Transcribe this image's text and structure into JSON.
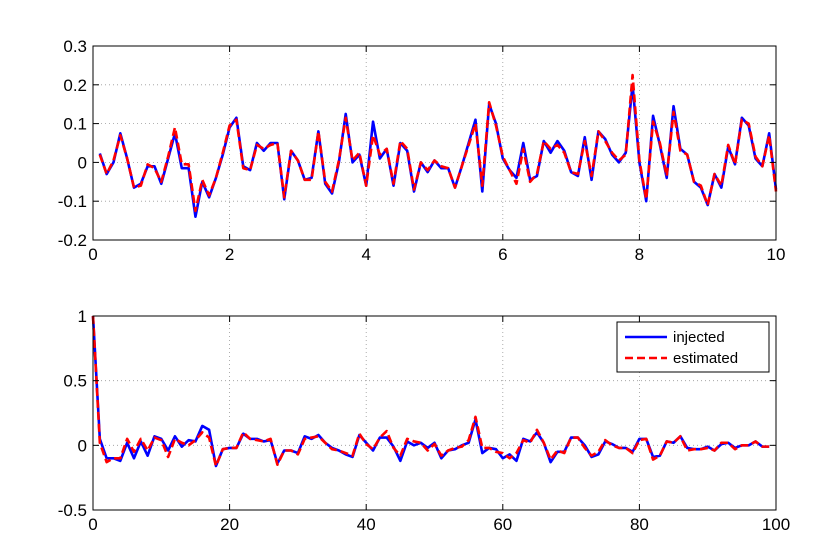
{
  "chart_data": [
    {
      "type": "line",
      "title": "",
      "xlabel": "",
      "ylabel": "",
      "xlim": [
        0,
        10
      ],
      "ylim": [
        -0.2,
        0.3
      ],
      "xticks": [
        0,
        2,
        4,
        6,
        8,
        10
      ],
      "yticks": [
        -0.2,
        -0.1,
        0,
        0.1,
        0.2,
        0.3
      ],
      "xtick_labels": [
        "0",
        "2",
        "4",
        "6",
        "8",
        "10"
      ],
      "ytick_labels": [
        "-0.2",
        "-0.1",
        "0",
        "0.1",
        "0.2",
        "0.3"
      ],
      "grid": true,
      "legend": null,
      "x_start": 0.1,
      "x_step": 0.1,
      "series": [
        {
          "color": "#0000ff",
          "style": "solid",
          "values": [
            0.023,
            -0.03,
            0.0,
            0.075,
            0.01,
            -0.065,
            -0.055,
            -0.01,
            -0.01,
            -0.055,
            0.01,
            0.075,
            -0.015,
            -0.015,
            -0.14,
            -0.05,
            -0.09,
            -0.04,
            0.02,
            0.09,
            0.115,
            -0.01,
            -0.02,
            0.05,
            0.03,
            0.05,
            0.05,
            -0.095,
            0.03,
            0.005,
            -0.045,
            -0.04,
            0.08,
            -0.055,
            -0.08,
            0.0,
            0.125,
            0.0,
            0.02,
            -0.06,
            0.105,
            0.01,
            0.035,
            -0.06,
            0.05,
            0.03,
            -0.075,
            0.0,
            -0.025,
            0.005,
            -0.015,
            -0.015,
            -0.065,
            -0.01,
            0.05,
            0.11,
            -0.075,
            0.15,
            0.1,
            0.01,
            -0.02,
            -0.04,
            0.05,
            -0.045,
            -0.035,
            0.055,
            0.025,
            0.055,
            0.03,
            -0.025,
            -0.035,
            0.065,
            -0.045,
            0.08,
            0.06,
            0.02,
            0.0,
            0.025,
            0.2,
            0.0,
            -0.1,
            0.12,
            0.045,
            -0.04,
            0.145,
            0.035,
            0.02,
            -0.05,
            -0.065,
            -0.11,
            -0.03,
            -0.065,
            0.04,
            -0.005,
            0.115,
            0.095,
            0.01,
            -0.01,
            0.075,
            -0.07
          ]
        },
        {
          "color": "#ff0000",
          "style": "dashed",
          "values": [
            0.02,
            -0.03,
            0.005,
            0.07,
            0.01,
            -0.065,
            -0.06,
            -0.005,
            -0.015,
            -0.05,
            0.015,
            0.09,
            -0.005,
            -0.005,
            -0.125,
            -0.045,
            -0.085,
            -0.04,
            0.025,
            0.095,
            0.11,
            -0.015,
            -0.02,
            0.045,
            0.035,
            0.045,
            0.05,
            -0.09,
            0.03,
            0.005,
            -0.045,
            -0.045,
            0.08,
            -0.05,
            -0.075,
            0.005,
            0.115,
            0.005,
            0.025,
            -0.06,
            0.07,
            0.02,
            0.035,
            -0.055,
            0.055,
            0.035,
            -0.07,
            0.0,
            -0.02,
            0.005,
            -0.01,
            -0.015,
            -0.065,
            -0.01,
            0.045,
            0.1,
            -0.06,
            0.155,
            0.095,
            0.015,
            -0.02,
            -0.055,
            0.035,
            -0.05,
            -0.03,
            0.055,
            0.035,
            0.045,
            0.025,
            -0.025,
            -0.03,
            0.055,
            -0.035,
            0.08,
            0.055,
            0.025,
            0.005,
            0.02,
            0.225,
            0.005,
            -0.095,
            0.105,
            0.05,
            -0.035,
            0.13,
            0.03,
            0.02,
            -0.05,
            -0.06,
            -0.11,
            -0.03,
            -0.06,
            0.045,
            -0.005,
            0.11,
            0.1,
            0.015,
            -0.01,
            0.07,
            -0.075
          ]
        }
      ]
    },
    {
      "type": "line",
      "title": "",
      "xlabel": "",
      "ylabel": "",
      "xlim": [
        0,
        100
      ],
      "ylim": [
        -0.5,
        1
      ],
      "xticks": [
        0,
        20,
        40,
        60,
        80,
        100
      ],
      "yticks": [
        -0.5,
        0,
        0.5,
        1
      ],
      "xtick_labels": [
        "0",
        "20",
        "40",
        "60",
        "80",
        "100"
      ],
      "ytick_labels": [
        "-0.5",
        "0",
        "0.5",
        "1"
      ],
      "grid": true,
      "legend": "top-right",
      "x_start": 0,
      "x_step": 1,
      "series": [
        {
          "name": "injected",
          "color": "#0000ff",
          "style": "solid",
          "values": [
            1.0,
            0.05,
            -0.1,
            -0.1,
            -0.12,
            0.02,
            -0.1,
            0.03,
            -0.08,
            0.07,
            0.05,
            -0.04,
            0.07,
            -0.01,
            0.04,
            0.03,
            0.15,
            0.12,
            -0.16,
            -0.03,
            -0.02,
            -0.02,
            0.09,
            0.05,
            0.05,
            0.03,
            0.04,
            -0.14,
            -0.04,
            -0.04,
            -0.06,
            0.07,
            0.05,
            0.08,
            0.02,
            -0.02,
            -0.04,
            -0.07,
            -0.09,
            0.08,
            0.02,
            -0.04,
            0.06,
            0.06,
            -0.01,
            -0.12,
            0.03,
            0.0,
            0.02,
            -0.02,
            0.02,
            -0.1,
            -0.04,
            -0.03,
            0.0,
            0.02,
            0.2,
            -0.06,
            -0.02,
            -0.03,
            -0.1,
            -0.07,
            -0.12,
            0.05,
            0.03,
            0.1,
            0.02,
            -0.13,
            -0.05,
            -0.05,
            0.06,
            0.06,
            0.0,
            -0.09,
            -0.07,
            0.03,
            0.01,
            -0.02,
            -0.02,
            -0.05,
            0.05,
            0.05,
            -0.09,
            -0.08,
            0.03,
            0.02,
            0.07,
            -0.02,
            -0.03,
            -0.03,
            -0.01,
            -0.04,
            0.01,
            0.02,
            -0.02,
            0.0,
            0.0,
            0.03,
            -0.01,
            -0.01
          ]
        },
        {
          "name": "estimated",
          "color": "#ff0000",
          "style": "dashed",
          "values": [
            1.0,
            0.02,
            -0.13,
            -0.1,
            -0.1,
            0.05,
            -0.05,
            0.05,
            -0.04,
            0.06,
            0.04,
            -0.09,
            0.05,
            0.02,
            0.0,
            0.04,
            0.1,
            0.06,
            -0.16,
            -0.03,
            -0.02,
            -0.02,
            0.1,
            0.05,
            0.04,
            0.03,
            0.05,
            -0.15,
            -0.04,
            -0.04,
            -0.07,
            0.05,
            0.06,
            0.07,
            0.02,
            -0.03,
            -0.04,
            -0.06,
            -0.08,
            0.09,
            0.01,
            -0.03,
            0.06,
            0.11,
            -0.02,
            -0.08,
            0.05,
            0.03,
            0.02,
            -0.04,
            0.01,
            -0.08,
            -0.04,
            -0.02,
            -0.01,
            0.04,
            0.22,
            -0.02,
            -0.02,
            -0.05,
            -0.06,
            -0.1,
            -0.06,
            0.04,
            0.02,
            0.12,
            0.02,
            -0.11,
            -0.04,
            -0.06,
            0.06,
            0.06,
            -0.02,
            -0.08,
            -0.05,
            0.04,
            0.0,
            -0.02,
            -0.02,
            -0.06,
            0.04,
            0.05,
            -0.11,
            -0.08,
            0.03,
            0.02,
            0.07,
            -0.04,
            -0.03,
            -0.03,
            -0.02,
            -0.04,
            0.02,
            0.02,
            -0.03,
            0.0,
            0.0,
            0.03,
            -0.01,
            -0.01
          ]
        }
      ]
    }
  ]
}
